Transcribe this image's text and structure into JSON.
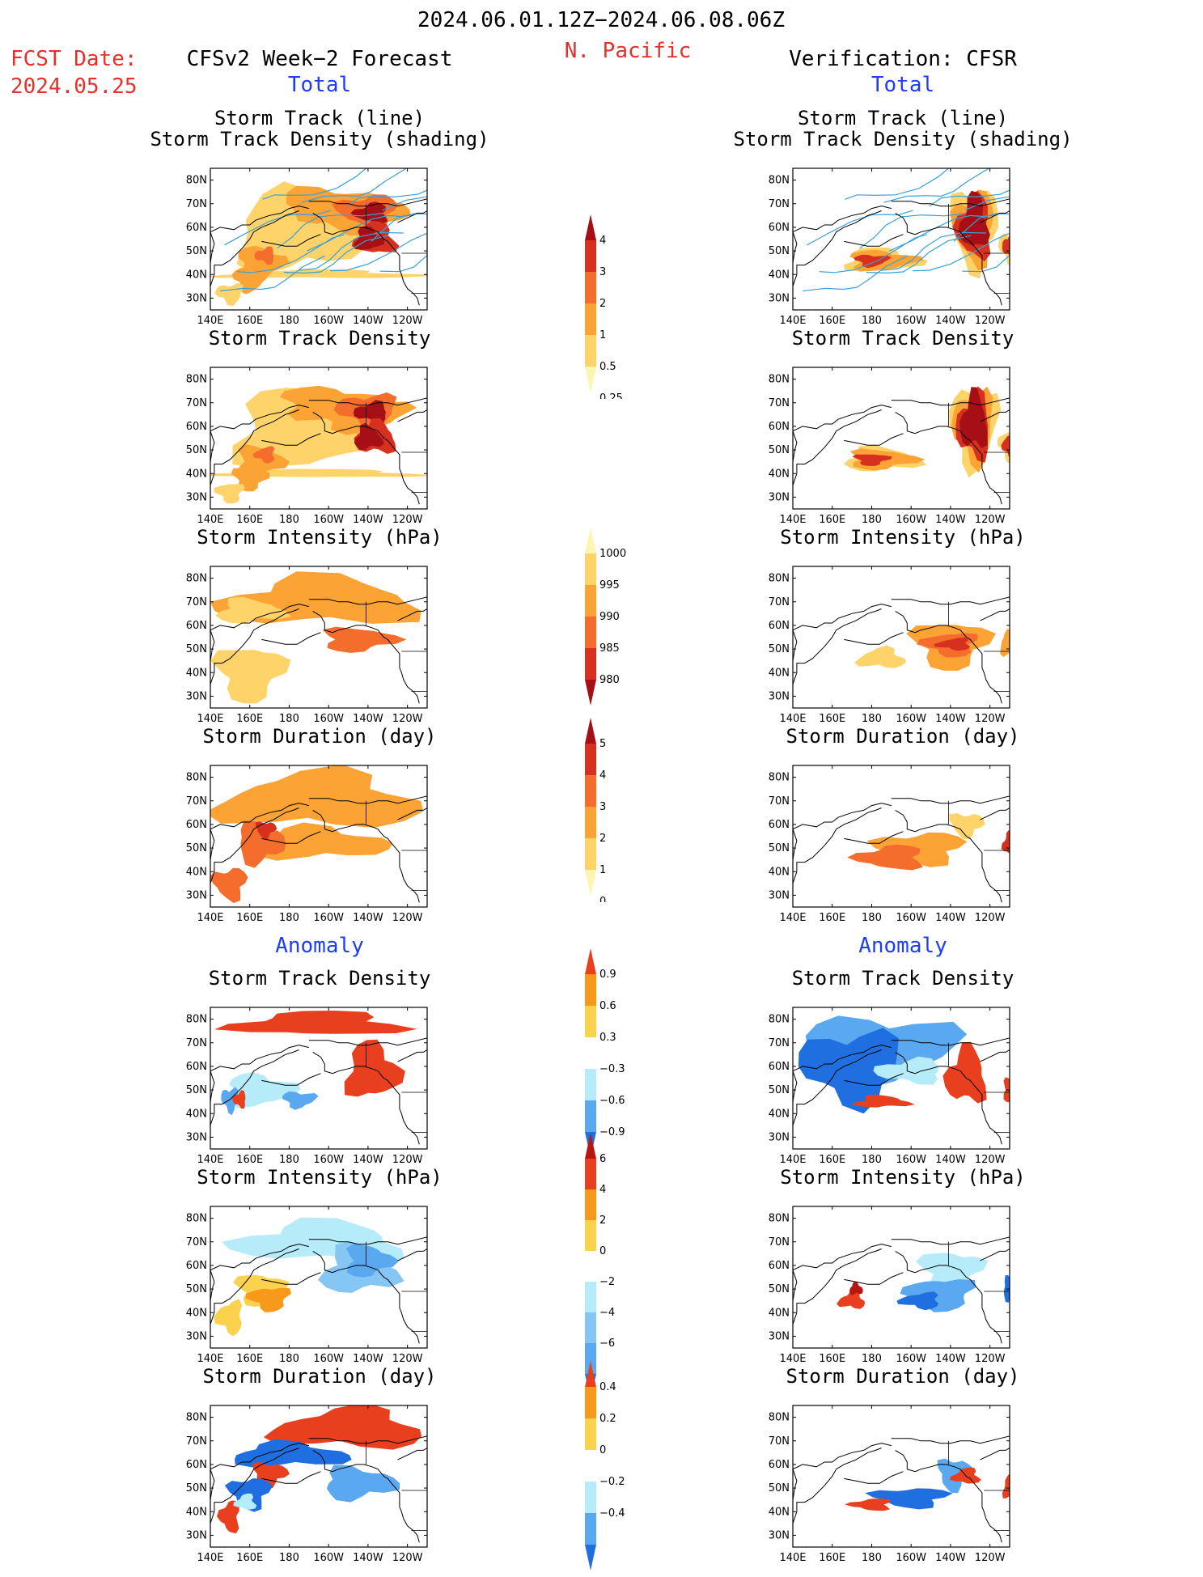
{
  "header": {
    "date_range": "2024.06.01.12Z−2024.06.08.06Z",
    "region": "N. Pacific",
    "fcst_label": "FCST Date:",
    "fcst_date": "2024.05.25",
    "left_heading": "CFSv2 Week−2 Forecast",
    "right_heading": "Verification: CFSR",
    "total_label": "Total",
    "anomaly_label": "Anomaly"
  },
  "axes": {
    "lat_ticks": [
      "80N",
      "70N",
      "60N",
      "50N",
      "40N",
      "30N"
    ],
    "lon_ticks": [
      "140E",
      "160E",
      "180",
      "160W",
      "140W",
      "120W"
    ],
    "lat_range": [
      25,
      85
    ],
    "lon_range": [
      140,
      250
    ]
  },
  "panel_titles": {
    "track_line": "Storm Track (line)",
    "track_shading": "Storm Track Density (shading)",
    "density": "Storm Track Density",
    "intensity": "Storm Intensity (hPa)",
    "duration": "Storm Duration (day)"
  },
  "colorbars": {
    "density_total": {
      "labels": [
        "4",
        "3",
        "2",
        "1",
        "0.5",
        "0.25"
      ],
      "colors": [
        "#a50f15",
        "#d7301f",
        "#f46d2c",
        "#fca336",
        "#fdd36a",
        "#fff5b0"
      ]
    },
    "intensity_total": {
      "labels": [
        "1000",
        "995",
        "990",
        "985",
        "980"
      ],
      "colors": [
        "#fff5b0",
        "#fdd36a",
        "#fca336",
        "#f46d2c",
        "#d7301f",
        "#a50f15"
      ]
    },
    "duration_total": {
      "labels": [
        "5",
        "4",
        "3",
        "2",
        "1",
        "0"
      ],
      "colors": [
        "#a50f15",
        "#d7301f",
        "#f46d2c",
        "#fca336",
        "#fdd36a",
        "#fff5b0"
      ]
    },
    "density_anom": {
      "labels": [
        "0.9",
        "0.6",
        "0.3",
        "−0.3",
        "−0.6",
        "−0.9"
      ],
      "colors": [
        "#e8401f",
        "#f79a1c",
        "#fbd24e",
        "#ffffff",
        "#b6ecfa",
        "#5aa8f0",
        "#1f6fe0"
      ]
    },
    "intensity_anom": {
      "labels": [
        "6",
        "4",
        "2",
        "0",
        "−2",
        "−4",
        "−6"
      ],
      "colors": [
        "#b8150f",
        "#e8401f",
        "#f79a1c",
        "#fbd24e",
        "#ffffff",
        "#b6ecfa",
        "#86c6f5",
        "#5aa8f0",
        "#1f6fe0"
      ]
    },
    "duration_anom": {
      "labels": [
        "0.4",
        "0.2",
        "0",
        "−0.2",
        "−0.4"
      ],
      "colors": [
        "#e8401f",
        "#f79a1c",
        "#fbd24e",
        "#ffffff",
        "#b6ecfa",
        "#5aa8f0",
        "#1f6fe0"
      ]
    }
  },
  "palette": {
    "dark_red": "#a50f15",
    "red": "#d7301f",
    "orange_red": "#f46d2c",
    "orange": "#fca336",
    "light_orange": "#fdd36a",
    "pale_yellow": "#fff5b0",
    "anom_red": "#e8401f",
    "anom_orange": "#f79a1c",
    "anom_yellow": "#fbd24e",
    "anom_lightblue": "#b6ecfa",
    "anom_blue": "#5aa8f0",
    "anom_darkblue": "#1f6fe0",
    "track_line": "#3aa0d8"
  },
  "panels": [
    {
      "name": "fcst-track-total",
      "blobs": [
        [
          "#fdd36a",
          195,
          40,
          60,
          0
        ],
        [
          "#fdd36a",
          185,
          58,
          40,
          20
        ],
        [
          "#fca336",
          200,
          70,
          30,
          8
        ],
        [
          "#fca336",
          215,
          65,
          30,
          8
        ],
        [
          "#f46d2c",
          220,
          67,
          18,
          8
        ],
        [
          "#a50f15",
          222,
          66,
          10,
          5
        ],
        [
          "#d7301f",
          224,
          55,
          12,
          8
        ],
        [
          "#a50f15",
          220,
          55,
          8,
          6
        ],
        [
          "#fca336",
          165,
          45,
          14,
          8
        ],
        [
          "#fca336",
          160,
          38,
          10,
          6
        ],
        [
          "#fdd36a",
          150,
          32,
          8,
          5
        ],
        [
          "#f46d2c",
          168,
          48,
          6,
          4
        ]
      ],
      "tracks": true
    },
    {
      "name": "cfsr-track-total",
      "blobs": [
        [
          "#fdd36a",
          232,
          60,
          14,
          20
        ],
        [
          "#fca336",
          232,
          60,
          12,
          18
        ],
        [
          "#d7301f",
          232,
          60,
          10,
          16
        ],
        [
          "#a50f15",
          232,
          62,
          8,
          14
        ],
        [
          "#fdd36a",
          185,
          46,
          22,
          6
        ],
        [
          "#fca336",
          185,
          46,
          20,
          5
        ],
        [
          "#d7301f",
          180,
          46,
          10,
          3
        ],
        [
          "#fdd36a",
          250,
          52,
          6,
          8
        ],
        [
          "#d7301f",
          250,
          52,
          4,
          6
        ]
      ],
      "tracks": true
    },
    {
      "name": "fcst-density-total",
      "blobs": [
        [
          "#fdd36a",
          195,
          40,
          60,
          0
        ],
        [
          "#fdd36a",
          185,
          58,
          40,
          20
        ],
        [
          "#fca336",
          200,
          70,
          30,
          8
        ],
        [
          "#fca336",
          215,
          65,
          30,
          8
        ],
        [
          "#f46d2c",
          220,
          67,
          18,
          8
        ],
        [
          "#a50f15",
          222,
          66,
          10,
          5
        ],
        [
          "#d7301f",
          224,
          55,
          12,
          8
        ],
        [
          "#a50f15",
          220,
          55,
          8,
          6
        ],
        [
          "#fca336",
          165,
          45,
          14,
          8
        ],
        [
          "#fca336",
          160,
          38,
          10,
          6
        ],
        [
          "#fdd36a",
          150,
          32,
          8,
          5
        ],
        [
          "#f46d2c",
          168,
          48,
          6,
          4
        ]
      ],
      "tracks": false
    },
    {
      "name": "cfsr-density-total",
      "blobs": [
        [
          "#fdd36a",
          232,
          60,
          14,
          20
        ],
        [
          "#fca336",
          232,
          60,
          12,
          18
        ],
        [
          "#d7301f",
          232,
          60,
          10,
          16
        ],
        [
          "#a50f15",
          232,
          62,
          8,
          14
        ],
        [
          "#fdd36a",
          185,
          46,
          22,
          6
        ],
        [
          "#fca336",
          185,
          46,
          20,
          5
        ],
        [
          "#d7301f",
          180,
          46,
          10,
          3
        ],
        [
          "#fdd36a",
          250,
          52,
          6,
          8
        ],
        [
          "#d7301f",
          250,
          52,
          4,
          6
        ]
      ],
      "tracks": false
    },
    {
      "name": "fcst-intensity-total",
      "blobs": [
        [
          "#fca336",
          195,
          70,
          60,
          12
        ],
        [
          "#fdd36a",
          160,
          66,
          20,
          6
        ],
        [
          "#f46d2c",
          215,
          54,
          22,
          6
        ],
        [
          "#fdd36a",
          160,
          40,
          20,
          14
        ]
      ],
      "tracks": false
    },
    {
      "name": "cfsr-intensity-total",
      "blobs": [
        [
          "#fca336",
          220,
          52,
          22,
          12
        ],
        [
          "#f46d2c",
          220,
          52,
          16,
          6
        ],
        [
          "#d7301f",
          222,
          52,
          10,
          3
        ],
        [
          "#fdd36a",
          185,
          46,
          14,
          5
        ],
        [
          "#fca336",
          250,
          52,
          6,
          6
        ]
      ],
      "tracks": false
    },
    {
      "name": "fcst-duration-total",
      "blobs": [
        [
          "#fca336",
          195,
          70,
          60,
          14
        ],
        [
          "#fca336",
          195,
          52,
          40,
          8
        ],
        [
          "#f46d2c",
          165,
          52,
          14,
          10
        ],
        [
          "#d7301f",
          168,
          58,
          6,
          4
        ],
        [
          "#f46d2c",
          150,
          35,
          10,
          8
        ]
      ],
      "tracks": false
    },
    {
      "name": "cfsr-duration-total",
      "blobs": [
        [
          "#fdd36a",
          228,
          60,
          10,
          6
        ],
        [
          "#fca336",
          205,
          50,
          26,
          8
        ],
        [
          "#f46d2c",
          190,
          46,
          20,
          6
        ],
        [
          "#d7301f",
          250,
          52,
          4,
          6
        ]
      ],
      "tracks": false
    },
    {
      "name": "fcst-density-anom",
      "blobs": [
        [
          "#e8401f",
          195,
          78,
          50,
          6
        ],
        [
          "#e8401f",
          222,
          58,
          16,
          14
        ],
        [
          "#b6ecfa",
          165,
          50,
          20,
          8
        ],
        [
          "#5aa8f0",
          185,
          46,
          10,
          4
        ],
        [
          "#5aa8f0",
          150,
          46,
          5,
          6
        ],
        [
          "#e8401f",
          155,
          46,
          4,
          4
        ]
      ],
      "tracks": false
    },
    {
      "name": "cfsr-density-anom",
      "blobs": [
        [
          "#5aa8f0",
          185,
          68,
          45,
          16
        ],
        [
          "#1f6fe0",
          170,
          60,
          30,
          18
        ],
        [
          "#b6ecfa",
          200,
          58,
          20,
          6
        ],
        [
          "#e8401f",
          228,
          56,
          12,
          14
        ],
        [
          "#e8401f",
          185,
          45,
          16,
          3
        ],
        [
          "#e8401f",
          250,
          50,
          4,
          6
        ]
      ],
      "tracks": false
    },
    {
      "name": "fcst-intensity-anom",
      "blobs": [
        [
          "#b6ecfa",
          195,
          70,
          50,
          10
        ],
        [
          "#86c6f5",
          215,
          58,
          22,
          12
        ],
        [
          "#5aa8f0",
          220,
          62,
          14,
          8
        ],
        [
          "#fbd24e",
          165,
          50,
          14,
          8
        ],
        [
          "#f79a1c",
          170,
          46,
          12,
          6
        ],
        [
          "#fbd24e",
          150,
          38,
          8,
          8
        ]
      ],
      "tracks": false
    },
    {
      "name": "cfsr-intensity-anom",
      "blobs": [
        [
          "#b6ecfa",
          220,
          58,
          18,
          10
        ],
        [
          "#5aa8f0",
          215,
          48,
          20,
          8
        ],
        [
          "#1f6fe0",
          205,
          45,
          12,
          4
        ],
        [
          "#e8401f",
          170,
          45,
          8,
          4
        ],
        [
          "#b8150f",
          172,
          50,
          4,
          3
        ],
        [
          "#1f6fe0",
          250,
          50,
          4,
          6
        ]
      ],
      "tracks": false
    },
    {
      "name": "fcst-duration-anom",
      "blobs": [
        [
          "#e8401f",
          210,
          75,
          45,
          10
        ],
        [
          "#1f6fe0",
          180,
          64,
          35,
          6
        ],
        [
          "#5aa8f0",
          215,
          52,
          22,
          8
        ],
        [
          "#e8401f",
          170,
          56,
          10,
          6
        ],
        [
          "#1f6fe0",
          160,
          48,
          12,
          8
        ],
        [
          "#e8401f",
          150,
          38,
          6,
          8
        ],
        [
          "#b6ecfa",
          158,
          44,
          6,
          4
        ]
      ],
      "tracks": false
    },
    {
      "name": "cfsr-duration-anom",
      "blobs": [
        [
          "#5aa8f0",
          222,
          56,
          10,
          8
        ],
        [
          "#1f6fe0",
          200,
          46,
          22,
          5
        ],
        [
          "#e8401f",
          180,
          43,
          12,
          3
        ],
        [
          "#e8401f",
          228,
          55,
          8,
          4
        ],
        [
          "#e8401f",
          250,
          50,
          4,
          6
        ]
      ],
      "tracks": false
    }
  ]
}
